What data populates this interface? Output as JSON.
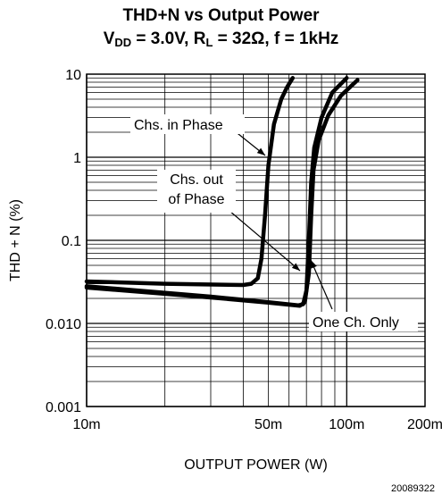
{
  "chart_data": {
    "type": "line",
    "title": "THD+N vs Output Power",
    "subtitle": {
      "v": "V",
      "v_sub": "DD",
      "v_rest": " = 3.0V, R",
      "r_sub": "L",
      "rest": " = 32Ω, f = 1kHz"
    },
    "xlabel": "OUTPUT POWER (W)",
    "ylabel": "THD + N (%)",
    "x_scale": "log",
    "y_scale": "log",
    "xlim": [
      0.01,
      0.2
    ],
    "ylim": [
      0.001,
      10
    ],
    "grid": true,
    "x_ticks": [
      {
        "value": 0.01,
        "label": "10m"
      },
      {
        "value": 0.05,
        "label": "50m"
      },
      {
        "value": 0.1,
        "label": "100m"
      },
      {
        "value": 0.2,
        "label": "200m"
      }
    ],
    "y_ticks": [
      {
        "value": 0.001,
        "label": "0.001"
      },
      {
        "value": 0.01,
        "label": "0.010"
      },
      {
        "value": 0.1,
        "label": "0.1"
      },
      {
        "value": 1,
        "label": "1"
      },
      {
        "value": 10,
        "label": "10"
      }
    ],
    "series": [
      {
        "name": "Chs. in Phase",
        "points": [
          [
            0.01,
            0.032
          ],
          [
            0.02,
            0.03
          ],
          [
            0.04,
            0.029
          ],
          [
            0.043,
            0.03
          ],
          [
            0.0455,
            0.035
          ],
          [
            0.047,
            0.06
          ],
          [
            0.0485,
            0.2
          ],
          [
            0.05,
            0.8
          ],
          [
            0.0525,
            2.5
          ],
          [
            0.056,
            5
          ],
          [
            0.059,
            7
          ],
          [
            0.062,
            9
          ]
        ]
      },
      {
        "name": "Chs. out of Phase",
        "points": [
          [
            0.01,
            0.028
          ],
          [
            0.03,
            0.021
          ],
          [
            0.05,
            0.018
          ],
          [
            0.065,
            0.0165
          ],
          [
            0.068,
            0.017
          ],
          [
            0.07,
            0.025
          ],
          [
            0.0715,
            0.1
          ],
          [
            0.073,
            0.5
          ],
          [
            0.075,
            1.3
          ],
          [
            0.08,
            3
          ],
          [
            0.088,
            6
          ],
          [
            0.1,
            9
          ]
        ]
      },
      {
        "name": "One Ch. Only",
        "points": [
          [
            0.01,
            0.027
          ],
          [
            0.03,
            0.0205
          ],
          [
            0.05,
            0.0178
          ],
          [
            0.066,
            0.0163
          ],
          [
            0.069,
            0.018
          ],
          [
            0.0715,
            0.04
          ],
          [
            0.073,
            0.2
          ],
          [
            0.0745,
            0.7
          ],
          [
            0.078,
            1.6
          ],
          [
            0.085,
            3.2
          ],
          [
            0.095,
            5.5
          ],
          [
            0.11,
            8.5
          ]
        ]
      }
    ],
    "annotations": [
      {
        "text": "Chs. in Phase",
        "target": "Chs. in Phase"
      },
      {
        "lines": [
          "Chs. out",
          "of Phase"
        ],
        "target": "Chs. out of Phase"
      },
      {
        "text": "One Ch. Only",
        "target": "One Ch. Only"
      }
    ]
  },
  "figure_id": "20089322"
}
